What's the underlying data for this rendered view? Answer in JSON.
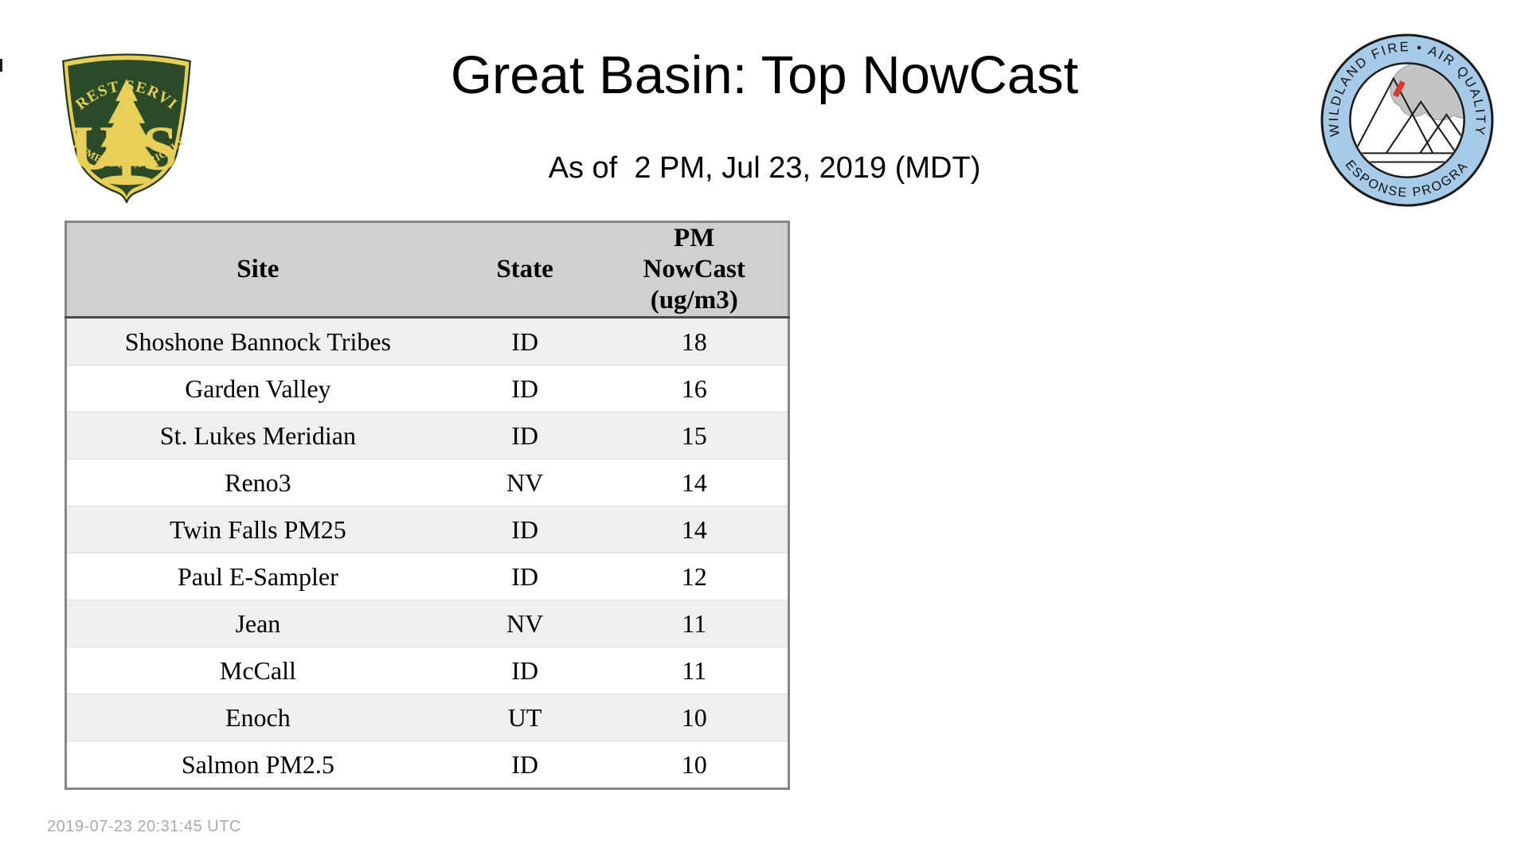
{
  "page": {
    "title": "Great Basin: Top NowCast",
    "subtitle": "As of  2 PM, Jul 23, 2019 (MDT)",
    "footer_timestamp": "2019-07-23 20:31:45 UTC"
  },
  "logos": {
    "left": {
      "name": "us-forest-service-shield",
      "arc_top": "FOREST SERVICE",
      "letter_u": "U",
      "letter_s": "S",
      "arc_bottom": "DEPARTMENT OF AGRICULTURE",
      "colors": {
        "green": "#2b4a28",
        "gold": "#e8cf5a"
      }
    },
    "right": {
      "name": "wildland-fire-air-quality-response-program-badge",
      "arc_top": "WILDLAND FIRE • AIR QUALITY",
      "arc_bottom": "RESPONSE PROGRAM",
      "colors": {
        "ring_blue": "#a8cae9",
        "smoke_gray": "#c3c3c3",
        "flame_red": "#dd382b"
      }
    }
  },
  "table": {
    "headers": [
      "Site",
      "State",
      "PM\nNowCast\n(ug/m3)"
    ],
    "rows": [
      {
        "site": "Shoshone Bannock Tribes",
        "state": "ID",
        "value": "18"
      },
      {
        "site": "Garden Valley",
        "state": "ID",
        "value": "16"
      },
      {
        "site": "St. Lukes Meridian",
        "state": "ID",
        "value": "15"
      },
      {
        "site": "Reno3",
        "state": "NV",
        "value": "14"
      },
      {
        "site": "Twin Falls PM25",
        "state": "ID",
        "value": "14"
      },
      {
        "site": "Paul E-Sampler",
        "state": "ID",
        "value": "12"
      },
      {
        "site": "Jean",
        "state": "NV",
        "value": "11"
      },
      {
        "site": "McCall",
        "state": "ID",
        "value": "11"
      },
      {
        "site": "Enoch",
        "state": "UT",
        "value": "10"
      },
      {
        "site": "Salmon PM2.5",
        "state": "ID",
        "value": "10"
      }
    ],
    "colors": {
      "header_bg": "#d0d0d0",
      "row_alt_bg": "#efefef",
      "row_bg": "#ffffff",
      "outer_border": "#868686",
      "header_rule": "#4a4a4a"
    }
  },
  "chart_data": {
    "type": "table",
    "title": "Great Basin: Top NowCast",
    "subtitle": "As of  2 PM, Jul 23, 2019 (MDT)",
    "columns": [
      "Site",
      "State",
      "PM NowCast (ug/m3)"
    ],
    "rows": [
      [
        "Shoshone Bannock Tribes",
        "ID",
        18
      ],
      [
        "Garden Valley",
        "ID",
        16
      ],
      [
        "St. Lukes Meridian",
        "ID",
        15
      ],
      [
        "Reno3",
        "NV",
        14
      ],
      [
        "Twin Falls PM25",
        "ID",
        14
      ],
      [
        "Paul E-Sampler",
        "ID",
        12
      ],
      [
        "Jean",
        "NV",
        11
      ],
      [
        "McCall",
        "ID",
        11
      ],
      [
        "Enoch",
        "UT",
        10
      ],
      [
        "Salmon PM2.5",
        "ID",
        10
      ]
    ]
  }
}
